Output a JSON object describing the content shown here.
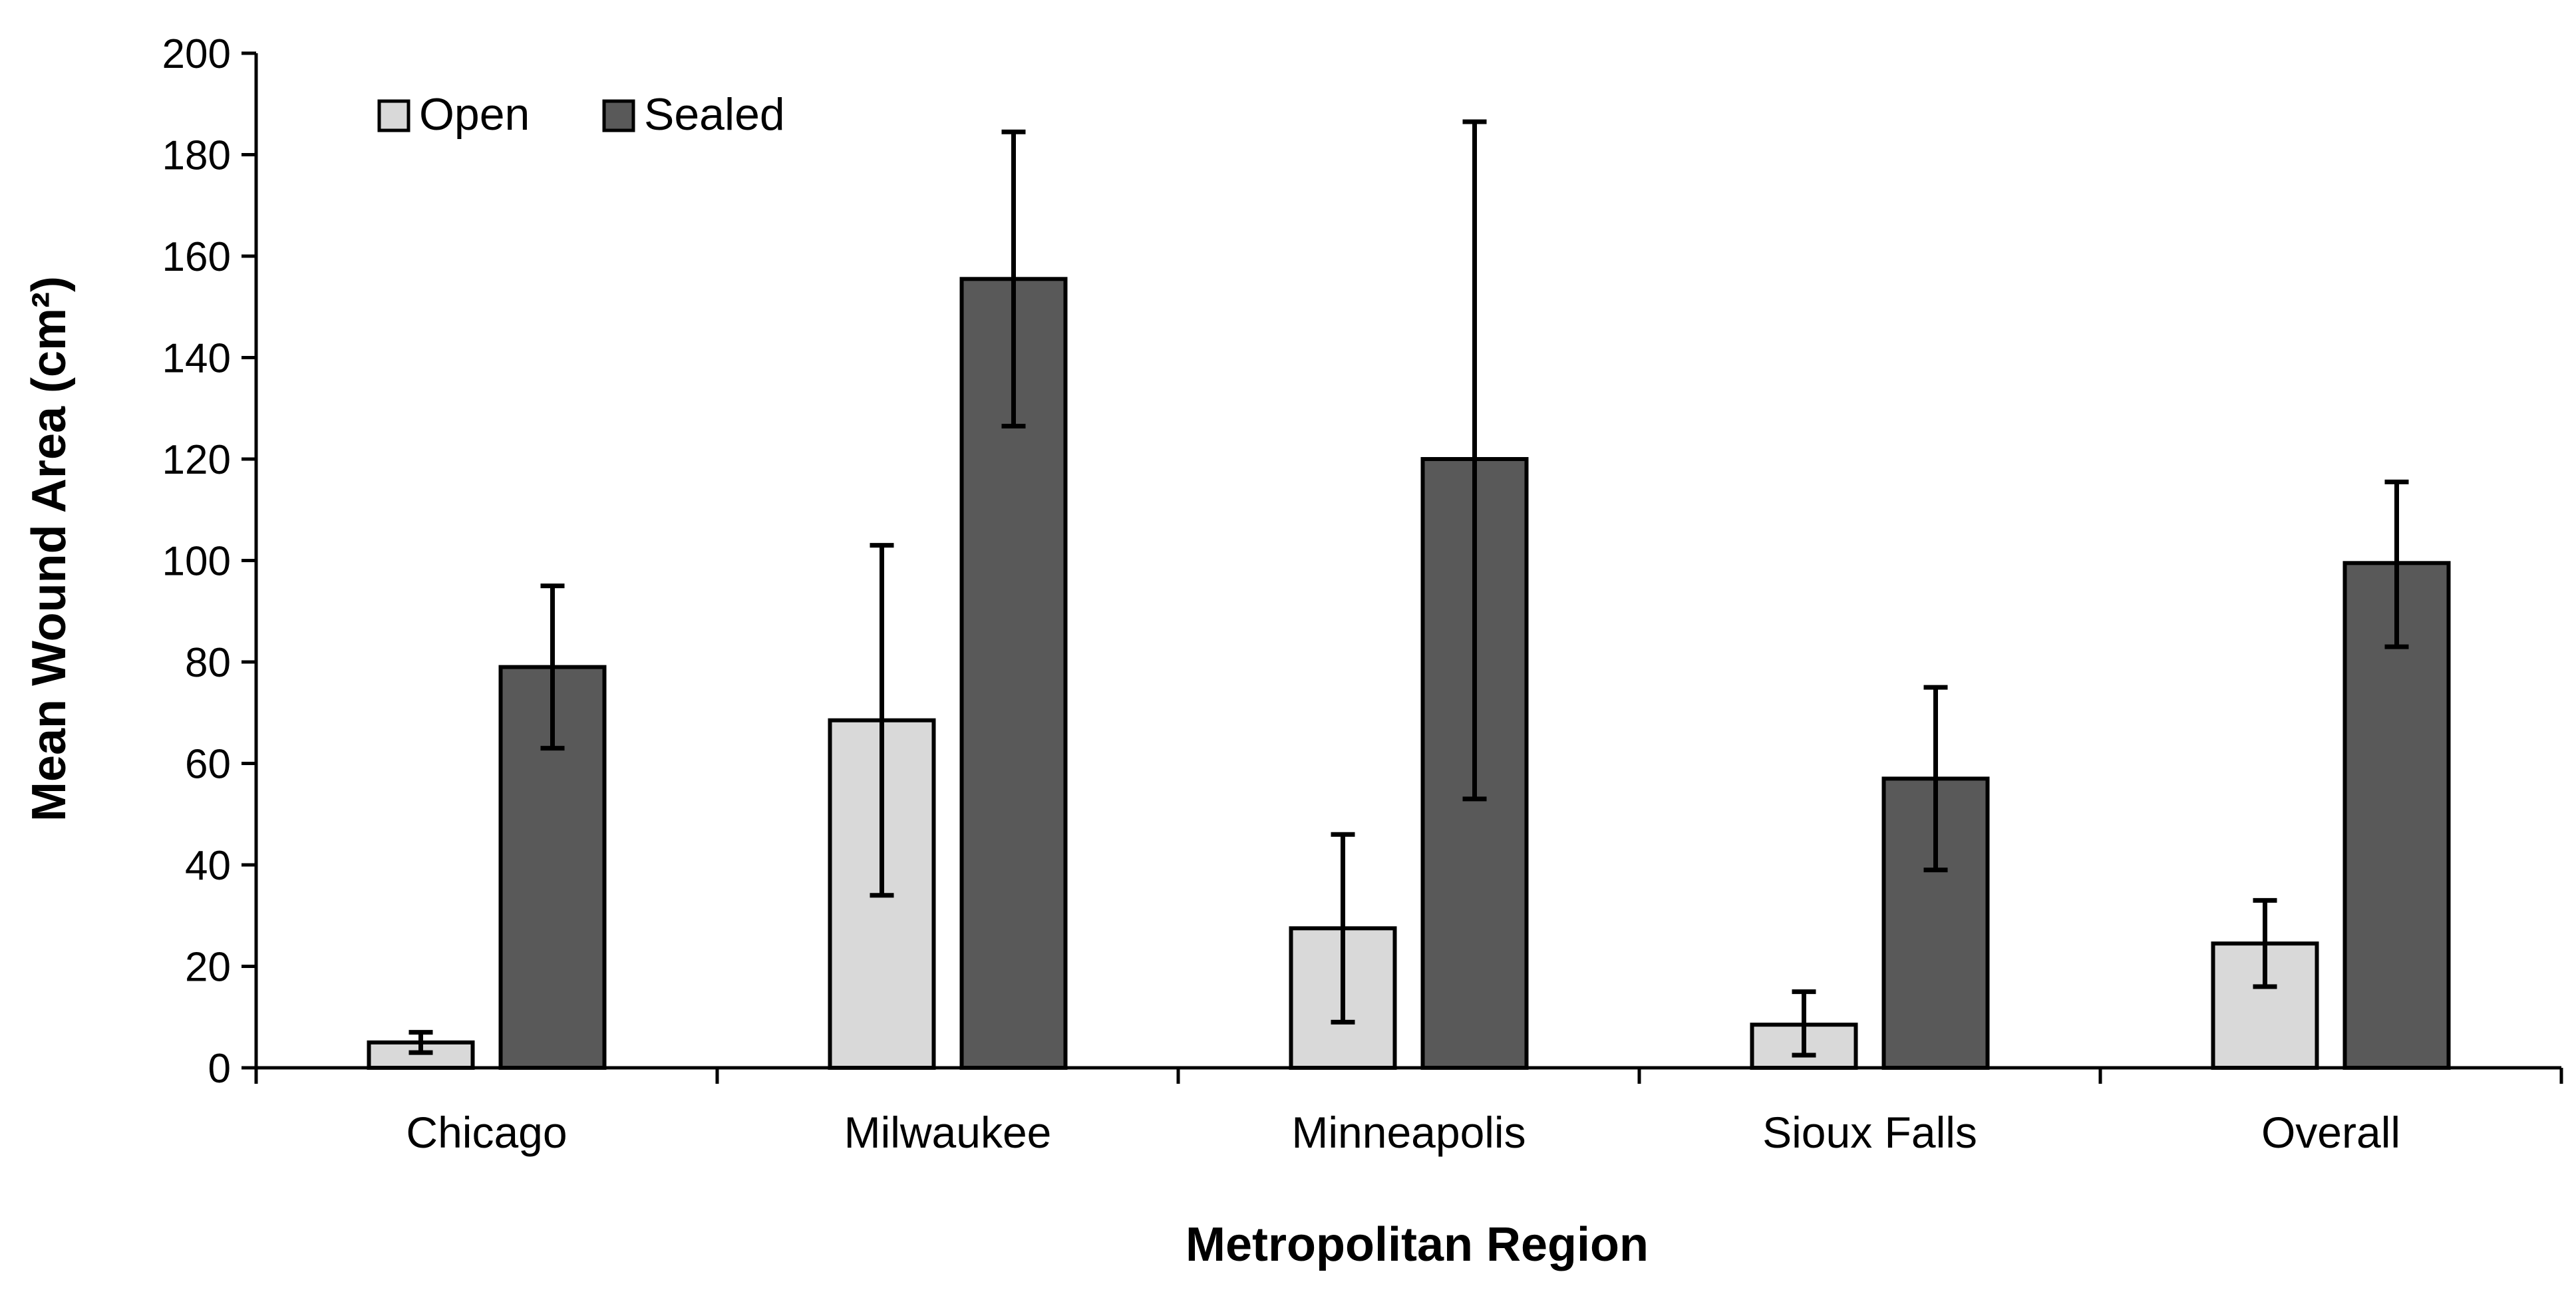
{
  "chart_data": {
    "type": "bar",
    "title": "",
    "xlabel": "Metropolitan Region",
    "ylabel": "Mean Wound Area (cm²)",
    "ylim": [
      0,
      200
    ],
    "yticks": [
      0,
      20,
      40,
      60,
      80,
      100,
      120,
      140,
      160,
      180,
      200
    ],
    "categories": [
      "Chicago",
      "Milwaukee",
      "Minneapolis",
      "Sioux Falls",
      "Overall"
    ],
    "grid": false,
    "legend_position": "top-left",
    "series": [
      {
        "name": "Open",
        "color": "#d9d9d9",
        "values": [
          5,
          68.5,
          27.5,
          8.5,
          24.5
        ],
        "error_low": [
          3,
          34,
          9,
          2.5,
          16
        ],
        "error_high": [
          7,
          103,
          46,
          15,
          33
        ]
      },
      {
        "name": "Sealed",
        "color": "#595959",
        "values": [
          79,
          155.5,
          120,
          57,
          99.5
        ],
        "error_low": [
          63,
          126.5,
          53,
          39,
          83
        ],
        "error_high": [
          95,
          184.5,
          186.5,
          75,
          115.5
        ]
      }
    ]
  }
}
